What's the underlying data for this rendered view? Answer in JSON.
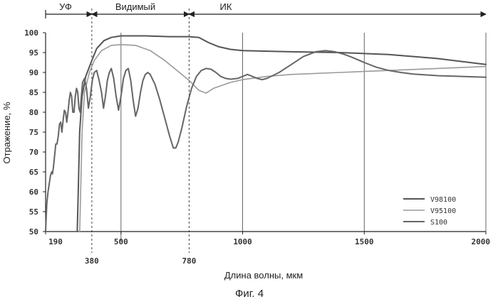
{
  "chart_data": {
    "type": "line",
    "caption": "Фиг. 4",
    "xlabel": "Длина волны, мкм",
    "ylabel": "Отражение, %",
    "xlim": [
      190,
      2000
    ],
    "ylim": [
      50,
      100
    ],
    "x_ticks_row1": [
      "190",
      "500",
      "1000",
      "1500",
      "2000"
    ],
    "x_ticks_row2": [
      "380",
      "780"
    ],
    "y_ticks": [
      "50",
      "55",
      "60",
      "65",
      "70",
      "75",
      "80",
      "85",
      "90",
      "95",
      "100"
    ],
    "bands": [
      {
        "label": "УФ",
        "from": 190,
        "to": 380
      },
      {
        "label": "Видимый",
        "from": 380,
        "to": 780
      },
      {
        "label": "ИК",
        "from": 780,
        "to": 2000
      }
    ],
    "grid": true,
    "legend_position": "bottom-right",
    "series": [
      {
        "name": "V98100",
        "color": "#555555",
        "points": [
          [
            320,
            50
          ],
          [
            325,
            62
          ],
          [
            330,
            75
          ],
          [
            340,
            84
          ],
          [
            355,
            89
          ],
          [
            380,
            93
          ],
          [
            400,
            96
          ],
          [
            430,
            98
          ],
          [
            460,
            98.8
          ],
          [
            500,
            99.2
          ],
          [
            600,
            99.2
          ],
          [
            700,
            99
          ],
          [
            780,
            99
          ],
          [
            820,
            98.8
          ],
          [
            860,
            97.5
          ],
          [
            900,
            96.5
          ],
          [
            950,
            95.8
          ],
          [
            1000,
            95.5
          ],
          [
            1200,
            95.2
          ],
          [
            1400,
            95
          ],
          [
            1600,
            94.5
          ],
          [
            1800,
            93.5
          ],
          [
            2000,
            92
          ]
        ]
      },
      {
        "name": "V95100",
        "color": "#9a9a9a",
        "points": [
          [
            330,
            50
          ],
          [
            335,
            62
          ],
          [
            340,
            75
          ],
          [
            350,
            85
          ],
          [
            370,
            90
          ],
          [
            390,
            93
          ],
          [
            420,
            95.5
          ],
          [
            460,
            96.8
          ],
          [
            500,
            97
          ],
          [
            560,
            96.8
          ],
          [
            620,
            95.5
          ],
          [
            680,
            93
          ],
          [
            740,
            90
          ],
          [
            780,
            88
          ],
          [
            820,
            85.5
          ],
          [
            850,
            84.8
          ],
          [
            880,
            86
          ],
          [
            950,
            87.5
          ],
          [
            1000,
            88.2
          ],
          [
            1100,
            89
          ],
          [
            1200,
            89.5
          ],
          [
            1400,
            90
          ],
          [
            1600,
            90.5
          ],
          [
            1800,
            91
          ],
          [
            2000,
            91.5
          ]
        ]
      },
      {
        "name": "S100",
        "color": "#666666",
        "points": [
          [
            190,
            50
          ],
          [
            195,
            57
          ],
          [
            200,
            60
          ],
          [
            205,
            62
          ],
          [
            210,
            64
          ],
          [
            215,
            65
          ],
          [
            218,
            64.5
          ],
          [
            222,
            66
          ],
          [
            227,
            69
          ],
          [
            232,
            72
          ],
          [
            237,
            72
          ],
          [
            242,
            74
          ],
          [
            247,
            77
          ],
          [
            252,
            77.5
          ],
          [
            257,
            75
          ],
          [
            262,
            78
          ],
          [
            267,
            80.5
          ],
          [
            272,
            80
          ],
          [
            277,
            77.5
          ],
          [
            282,
            80
          ],
          [
            287,
            83
          ],
          [
            292,
            85
          ],
          [
            297,
            84
          ],
          [
            302,
            80
          ],
          [
            307,
            80
          ],
          [
            312,
            84
          ],
          [
            317,
            86
          ],
          [
            322,
            85
          ],
          [
            327,
            81
          ],
          [
            332,
            80
          ],
          [
            337,
            84
          ],
          [
            342,
            87.5
          ],
          [
            350,
            88.5
          ],
          [
            358,
            86
          ],
          [
            366,
            81
          ],
          [
            374,
            84
          ],
          [
            382,
            88
          ],
          [
            390,
            90
          ],
          [
            400,
            90.5
          ],
          [
            410,
            88
          ],
          [
            420,
            85
          ],
          [
            428,
            81
          ],
          [
            436,
            84
          ],
          [
            444,
            88
          ],
          [
            452,
            90
          ],
          [
            460,
            91
          ],
          [
            470,
            88.5
          ],
          [
            480,
            84
          ],
          [
            490,
            80.5
          ],
          [
            500,
            84
          ],
          [
            510,
            88.5
          ],
          [
            520,
            90.5
          ],
          [
            530,
            91
          ],
          [
            540,
            88
          ],
          [
            550,
            83
          ],
          [
            560,
            79
          ],
          [
            570,
            81
          ],
          [
            580,
            85
          ],
          [
            590,
            88
          ],
          [
            600,
            89.5
          ],
          [
            610,
            90
          ],
          [
            620,
            89.5
          ],
          [
            640,
            87
          ],
          [
            660,
            83
          ],
          [
            680,
            78.5
          ],
          [
            700,
            74
          ],
          [
            715,
            71
          ],
          [
            725,
            71
          ],
          [
            735,
            72.5
          ],
          [
            750,
            76
          ],
          [
            770,
            81.5
          ],
          [
            790,
            86
          ],
          [
            810,
            89
          ],
          [
            830,
            90.5
          ],
          [
            850,
            91
          ],
          [
            870,
            90.8
          ],
          [
            890,
            90
          ],
          [
            910,
            89
          ],
          [
            930,
            88.5
          ],
          [
            950,
            88.3
          ],
          [
            980,
            88.5
          ],
          [
            1000,
            89
          ],
          [
            1020,
            89.5
          ],
          [
            1040,
            89
          ],
          [
            1060,
            88.5
          ],
          [
            1080,
            88.2
          ],
          [
            1100,
            88.5
          ],
          [
            1150,
            90
          ],
          [
            1200,
            92
          ],
          [
            1250,
            94
          ],
          [
            1300,
            95.2
          ],
          [
            1340,
            95.5
          ],
          [
            1380,
            95.2
          ],
          [
            1420,
            94.5
          ],
          [
            1450,
            93.8
          ],
          [
            1500,
            92.5
          ],
          [
            1550,
            91.3
          ],
          [
            1600,
            90.5
          ],
          [
            1650,
            90
          ],
          [
            1700,
            89.6
          ],
          [
            1800,
            89.2
          ],
          [
            1900,
            89
          ],
          [
            2000,
            88.8
          ]
        ]
      }
    ]
  }
}
